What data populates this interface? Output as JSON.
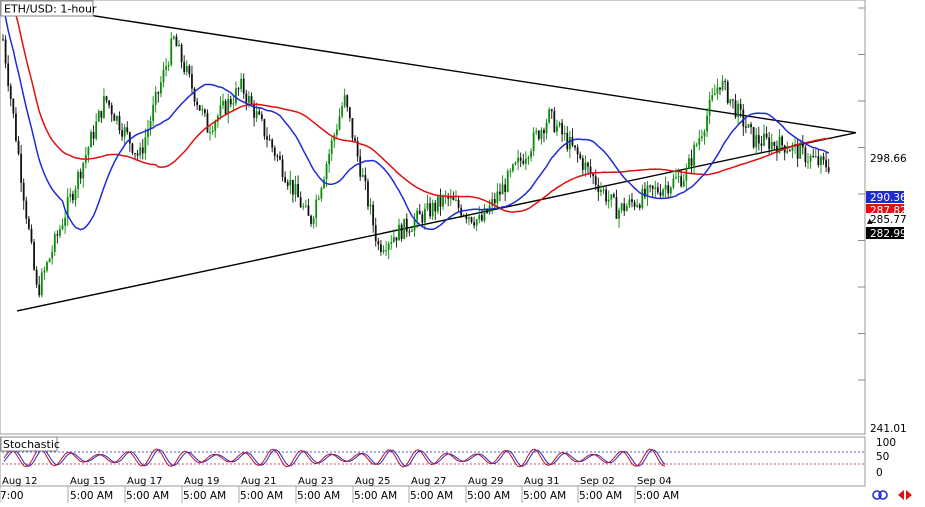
{
  "title": "ETH/USD: 1-hour",
  "indicator_label": "Stochastic",
  "colors": {
    "up_candle": "#0a8a0a",
    "down_candle": "#111111",
    "ma_fast": "#1f2bd6",
    "ma_slow": "#e01010",
    "trendline": "#000000",
    "stoch_k": "#c0102a",
    "stoch_d": "#2a2ac0",
    "label_blue": "#1f2bd6",
    "label_red": "#e01010",
    "label_black": "#000000"
  },
  "price_axis": {
    "ticks": [
      "298.66",
      "290.36",
      "287.82",
      "285.77",
      "282.99",
      "241.01"
    ],
    "marker_glyph": "▲"
  },
  "stoch_axis": {
    "ticks": [
      "100",
      "50",
      "0"
    ]
  },
  "time_axis": {
    "date_labels": [
      "Aug 12",
      "Aug 15",
      "Aug 17",
      "Aug 19",
      "Aug 21",
      "Aug 23",
      "Aug 25",
      "Aug 27",
      "Aug 29",
      "Aug 31",
      "Sep 02",
      "Sep 04"
    ],
    "time_labels": [
      "7:00",
      "5:00 AM",
      "5:00 AM",
      "5:00 AM",
      "5:00 AM",
      "5:00 AM",
      "5:00 AM",
      "5:00 AM",
      "5:00 AM",
      "5:00 AM",
      "5:00 AM",
      "5:00 AM"
    ]
  },
  "icons": {
    "link": "link-icon",
    "arrows": "arrows-icon"
  },
  "chart_data": {
    "type": "candlestick",
    "symbol": "ETH/USD",
    "timeframe": "1-hour",
    "price_range": [
      241.01,
      313
    ],
    "last_prices": {
      "ma_fast": 290.36,
      "ma_slow": 287.82,
      "close": 285.77,
      "bid": 282.99,
      "resistance_level": 298.66
    },
    "trendlines": [
      {
        "name": "descending_resistance",
        "from": {
          "date": "Aug 12",
          "price": 313.0
        },
        "to": {
          "date": "Sep 06",
          "price": 291.2
        }
      },
      {
        "name": "ascending_support",
        "from": {
          "date": "Aug 12",
          "price": 261.0
        },
        "to": {
          "date": "Sep 06",
          "price": 291.2
        }
      }
    ],
    "key_points": [
      {
        "date": "Aug 12",
        "price": 307
      },
      {
        "date": "Aug 13",
        "price": 264
      },
      {
        "date": "Aug 15",
        "price": 297
      },
      {
        "date": "Aug 16",
        "price": 287
      },
      {
        "date": "Aug 17",
        "price": 307
      },
      {
        "date": "Aug 18",
        "price": 292
      },
      {
        "date": "Aug 19",
        "price": 299
      },
      {
        "date": "Aug 21",
        "price": 276
      },
      {
        "date": "Aug 22",
        "price": 297
      },
      {
        "date": "Aug 23",
        "price": 272
      },
      {
        "date": "Aug 25",
        "price": 280
      },
      {
        "date": "Aug 26",
        "price": 276
      },
      {
        "date": "Aug 28",
        "price": 294
      },
      {
        "date": "Aug 30",
        "price": 278
      },
      {
        "date": "Sep 01",
        "price": 284
      },
      {
        "date": "Sep 02",
        "price": 300
      },
      {
        "date": "Sep 03",
        "price": 290
      },
      {
        "date": "Sep 04",
        "price": 289
      },
      {
        "date": "Sep 05",
        "price": 285.77
      }
    ],
    "stochastic": {
      "range": [
        0,
        100
      ],
      "levels": [
        80,
        20
      ]
    }
  }
}
